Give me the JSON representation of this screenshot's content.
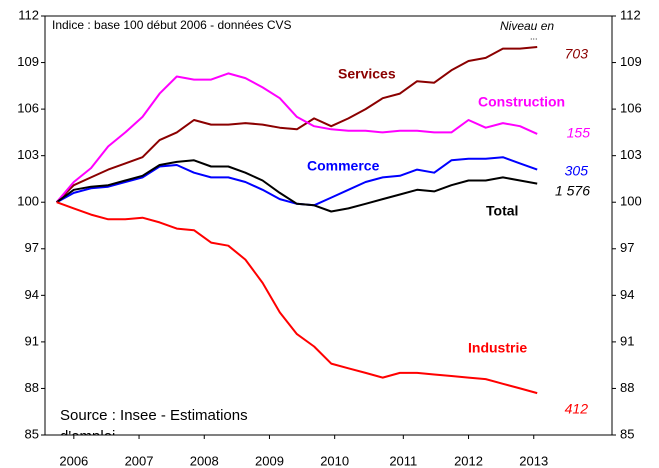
{
  "chart_data": {
    "type": "line",
    "subtitle": "Indice : base 100  début  2006 - données CVS",
    "legend_title": [
      "Niveau en",
      "..."
    ],
    "source": [
      "Source : Insee - Estimations",
      "d'emploi"
    ],
    "x": [
      2006,
      2006.25,
      2006.5,
      2006.75,
      2007,
      2007.25,
      2007.5,
      2007.75,
      2008,
      2008.25,
      2008.5,
      2008.75,
      2009,
      2009.25,
      2009.5,
      2009.75,
      2010,
      2010.25,
      2010.5,
      2010.75,
      2011,
      2011.25,
      2011.5,
      2011.75,
      2012,
      2012.25,
      2012.5,
      2012.75,
      2013
    ],
    "xlim": [
      2005.83,
      2014.09
    ],
    "xticks": [
      {
        "value": 2006.25,
        "label": "2006"
      },
      {
        "value": 2007.2,
        "label": "2007"
      },
      {
        "value": 2008.15,
        "label": "2008"
      },
      {
        "value": 2009.1,
        "label": "2009"
      },
      {
        "value": 2010.05,
        "label": "2010"
      },
      {
        "value": 2011.05,
        "label": "2011"
      },
      {
        "value": 2012.0,
        "label": "2012"
      },
      {
        "value": 2012.95,
        "label": "2013"
      }
    ],
    "ylim": [
      85,
      112
    ],
    "yticks": [
      85,
      88,
      91,
      94,
      97,
      100,
      103,
      106,
      109,
      112
    ],
    "y2lim": [
      85,
      112
    ],
    "y2ticks": [
      85,
      88,
      91,
      94,
      97,
      100,
      103,
      106,
      109,
      112
    ],
    "grid": false,
    "series": [
      {
        "name": "Services",
        "color": "#8b0000",
        "level": "703",
        "values": [
          100,
          101.1,
          101.6,
          102.1,
          102.5,
          102.9,
          104.0,
          104.5,
          105.3,
          105.0,
          105.0,
          105.1,
          105.0,
          104.8,
          104.7,
          105.4,
          104.9,
          105.4,
          106.0,
          106.7,
          107.0,
          107.8,
          107.7,
          108.5,
          109.1,
          109.3,
          109.9,
          109.9,
          110.0
        ]
      },
      {
        "name": "Construction",
        "color": "#ff00ff",
        "level": "155",
        "values": [
          100,
          101.3,
          102.2,
          103.6,
          104.5,
          105.5,
          107.0,
          108.1,
          107.9,
          107.9,
          108.3,
          108.0,
          107.4,
          106.7,
          105.5,
          104.9,
          104.7,
          104.6,
          104.6,
          104.5,
          104.6,
          104.6,
          104.5,
          104.5,
          105.3,
          104.8,
          105.1,
          104.9,
          104.4
        ]
      },
      {
        "name": "Commerce",
        "color": "#0000ff",
        "level": "305",
        "values": [
          100,
          100.6,
          100.9,
          101.0,
          101.3,
          101.6,
          102.3,
          102.4,
          101.9,
          101.6,
          101.6,
          101.3,
          100.8,
          100.2,
          99.9,
          99.8,
          100.3,
          100.8,
          101.3,
          101.6,
          101.7,
          102.1,
          101.9,
          102.7,
          102.8,
          102.8,
          102.9,
          102.5,
          102.1
        ]
      },
      {
        "name": "Total",
        "color": "#000000",
        "level": "1 576",
        "values": [
          100,
          100.8,
          101.0,
          101.1,
          101.4,
          101.7,
          102.4,
          102.6,
          102.7,
          102.3,
          102.3,
          101.9,
          101.4,
          100.6,
          99.9,
          99.8,
          99.4,
          99.6,
          99.9,
          100.2,
          100.5,
          100.8,
          100.7,
          101.1,
          101.4,
          101.4,
          101.6,
          101.4,
          101.2
        ]
      },
      {
        "name": "Industrie",
        "color": "#ff0000",
        "level": "412",
        "values": [
          100,
          99.6,
          99.2,
          98.9,
          98.9,
          99.0,
          98.7,
          98.3,
          98.2,
          97.4,
          97.2,
          96.3,
          94.8,
          92.9,
          91.5,
          90.7,
          89.6,
          89.3,
          89.0,
          88.7,
          89.0,
          89.0,
          88.9,
          88.8,
          88.7,
          88.6,
          88.3,
          88.0,
          87.7
        ]
      }
    ]
  }
}
